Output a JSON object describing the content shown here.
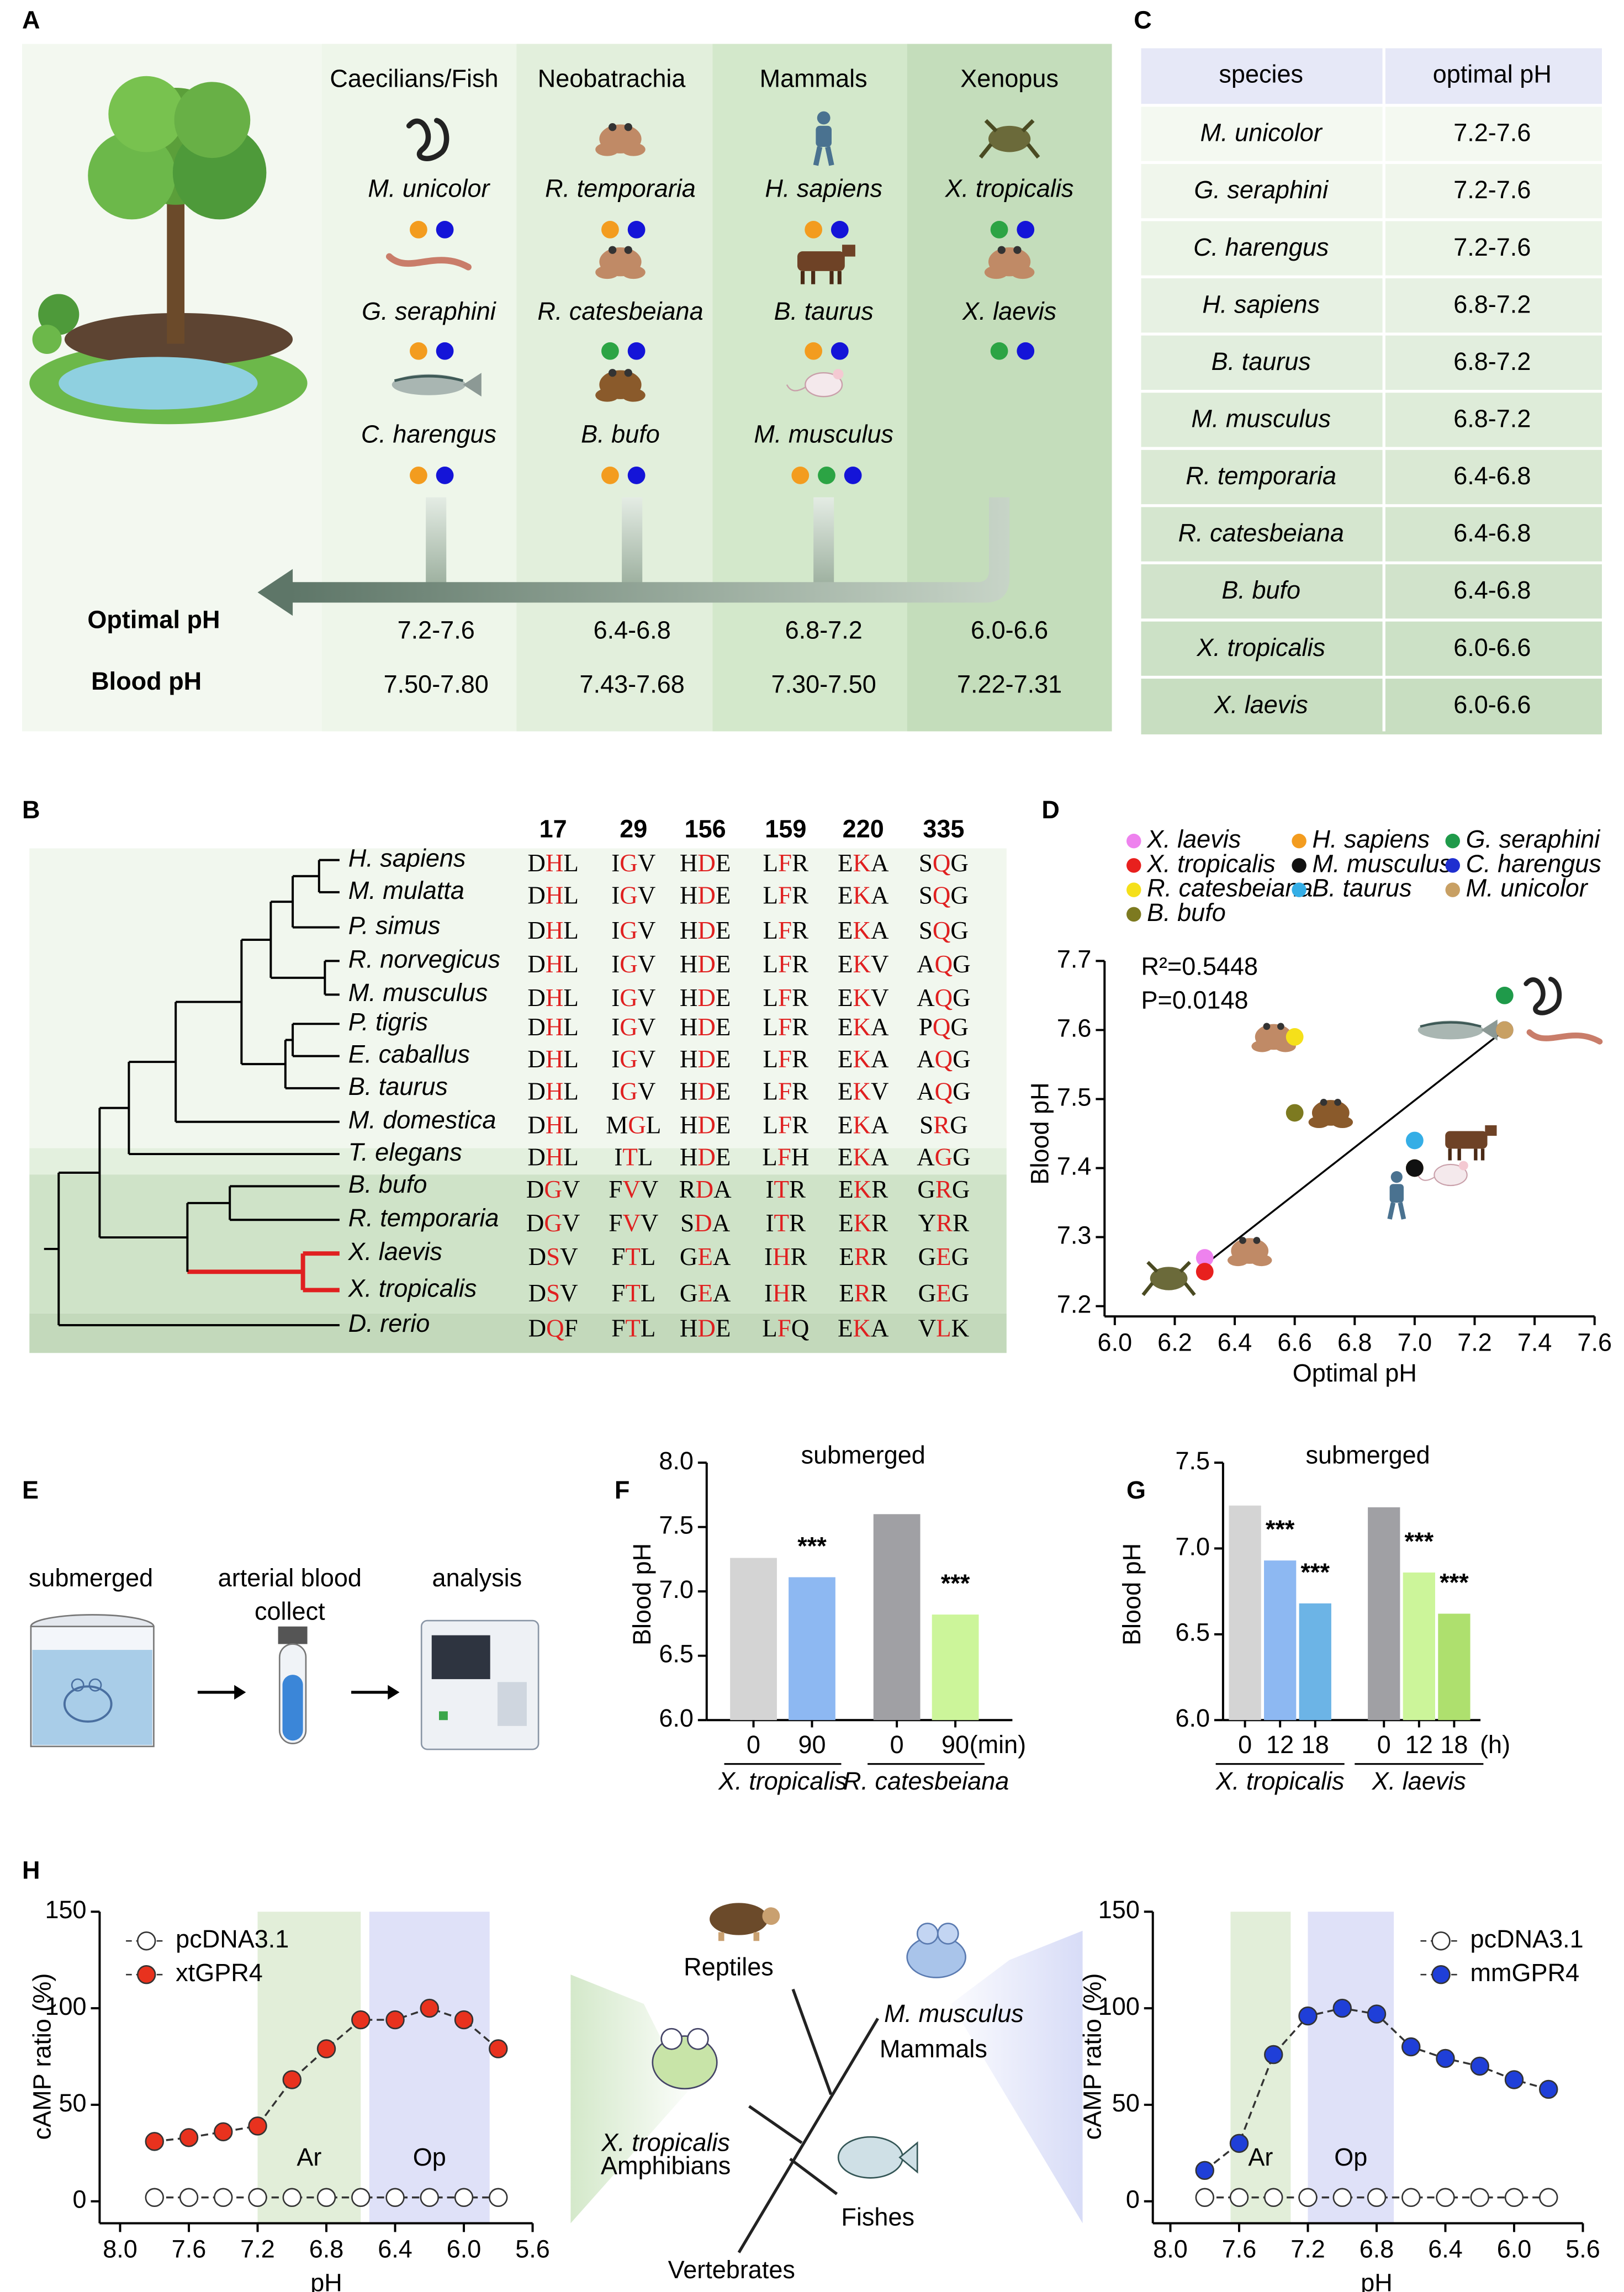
{
  "panel_labels": [
    "A",
    "B",
    "C",
    "D",
    "E",
    "F",
    "G",
    "H"
  ],
  "panel_a": {
    "columns": [
      {
        "header": "Caecilians/Fish",
        "species": [
          {
            "name": "M. unicolor",
            "dots": [
              "#f39c1f",
              "#1414d8"
            ]
          },
          {
            "name": "G. seraphini",
            "dots": [
              "#f39c1f",
              "#1414d8"
            ]
          },
          {
            "name": "C. harengus",
            "dots": [
              "#f39c1f",
              "#1414d8"
            ]
          }
        ],
        "optimal_ph": "7.2-7.6",
        "blood_ph": "7.50-7.80"
      },
      {
        "header": "Neobatrachia",
        "species": [
          {
            "name": "R. temporaria",
            "dots": [
              "#f39c1f",
              "#1414d8"
            ]
          },
          {
            "name": "R. catesbeiana",
            "dots": [
              "#2ca444",
              "#1414d8"
            ]
          },
          {
            "name": "B. bufo",
            "dots": [
              "#f39c1f",
              "#1414d8"
            ]
          }
        ],
        "optimal_ph": "6.4-6.8",
        "blood_ph": "7.43-7.68"
      },
      {
        "header": "Mammals",
        "species": [
          {
            "name": "H. sapiens",
            "dots": [
              "#f39c1f",
              "#1414d8"
            ]
          },
          {
            "name": "B. taurus",
            "dots": [
              "#f39c1f",
              "#1414d8"
            ]
          },
          {
            "name": "M. musculus",
            "dots": [
              "#f39c1f",
              "#2ca444",
              "#1414d8"
            ]
          }
        ],
        "optimal_ph": "6.8-7.2",
        "blood_ph": "7.30-7.50"
      },
      {
        "header": "Xenopus",
        "species": [
          {
            "name": "X. tropicalis",
            "dots": [
              "#2ca444",
              "#1414d8"
            ]
          },
          {
            "name": "X. laevis",
            "dots": [
              "#2ca444",
              "#1414d8"
            ]
          }
        ],
        "optimal_ph": "6.0-6.6",
        "blood_ph": "7.22-7.31"
      }
    ],
    "row_labels": [
      "Optimal pH",
      "Blood pH"
    ]
  },
  "table_c": {
    "columns": [
      "species",
      "optimal pH"
    ],
    "rows": [
      [
        "M. unicolor",
        "7.2-7.6"
      ],
      [
        "G. seraphini",
        "7.2-7.6"
      ],
      [
        "C. harengus",
        "7.2-7.6"
      ],
      [
        "H. sapiens",
        "6.8-7.2"
      ],
      [
        "B. taurus",
        "6.8-7.2"
      ],
      [
        "M. musculus",
        "6.8-7.2"
      ],
      [
        "R. temporaria",
        "6.4-6.8"
      ],
      [
        "R. catesbeiana",
        "6.4-6.8"
      ],
      [
        "B. bufo",
        "6.4-6.8"
      ],
      [
        "X. tropicalis",
        "6.0-6.6"
      ],
      [
        "X. laevis",
        "6.0-6.6"
      ]
    ]
  },
  "alignment_b": {
    "positions": [
      17,
      29,
      156,
      159,
      220,
      335
    ],
    "rows": [
      {
        "species": "H. sapiens",
        "residues": [
          "DHL",
          "IGV",
          "HDE",
          "LFR",
          "EKA",
          "SQG"
        ]
      },
      {
        "species": "M. mulatta",
        "residues": [
          "DHL",
          "IGV",
          "HDE",
          "LFR",
          "EKA",
          "SQG"
        ]
      },
      {
        "species": "P. simus",
        "residues": [
          "DHL",
          "IGV",
          "HDE",
          "LFR",
          "EKA",
          "SQG"
        ]
      },
      {
        "species": "R. norvegicus",
        "residues": [
          "DHL",
          "IGV",
          "HDE",
          "LFR",
          "EKV",
          "AQG"
        ]
      },
      {
        "species": "M. musculus",
        "residues": [
          "DHL",
          "IGV",
          "HDE",
          "LFR",
          "EKV",
          "AQG"
        ]
      },
      {
        "species": "P. tigris",
        "residues": [
          "DHL",
          "IGV",
          "HDE",
          "LFR",
          "EKA",
          "PQG"
        ]
      },
      {
        "species": "E. caballus",
        "residues": [
          "DHL",
          "IGV",
          "HDE",
          "LFR",
          "EKA",
          "AQG"
        ]
      },
      {
        "species": "B. taurus",
        "residues": [
          "DHL",
          "IGV",
          "HDE",
          "LFR",
          "EKV",
          "AQG"
        ]
      },
      {
        "species": "M. domestica",
        "residues": [
          "DHL",
          "MGL",
          "HDE",
          "LFR",
          "EKA",
          "SRG"
        ]
      },
      {
        "species": "T. elegans",
        "residues": [
          "DHL",
          "ITL",
          "HDE",
          "LFH",
          "EKA",
          "AGG"
        ]
      },
      {
        "species": "B. bufo",
        "residues": [
          "DGV",
          "FVV",
          "RDA",
          "ITR",
          "EKR",
          "GRG"
        ]
      },
      {
        "species": "R. temporaria",
        "residues": [
          "DGV",
          "FVV",
          "SDA",
          "ITR",
          "EKR",
          "YRR"
        ]
      },
      {
        "species": "X. laevis",
        "residues": [
          "DSV",
          "FTL",
          "GEA",
          "IHR",
          "ERR",
          "GEG"
        ]
      },
      {
        "species": "X. tropicalis",
        "residues": [
          "DSV",
          "FTL",
          "GEA",
          "IHR",
          "ERR",
          "GEG"
        ]
      },
      {
        "species": "D. rerio",
        "residues": [
          "DQF",
          "FTL",
          "HDE",
          "LFQ",
          "EKA",
          "VLK"
        ]
      }
    ]
  },
  "panel_e": {
    "steps": [
      {
        "lines": [
          "submerged"
        ]
      },
      {
        "lines": [
          "arterial blood",
          "collect"
        ]
      },
      {
        "lines": [
          "analysis"
        ]
      }
    ]
  },
  "diagram_h": {
    "labels": [
      {
        "text": "Reptiles",
        "color": "#000000"
      },
      {
        "text": "M. musculus",
        "color": "#1f3fd8"
      },
      {
        "text": "Mammals",
        "color": "#000000"
      },
      {
        "text": "X. tropicalis",
        "color": "#e8321e"
      },
      {
        "text": "Amphibians",
        "color": "#000000"
      },
      {
        "text": "Fishes",
        "color": "#000000"
      },
      {
        "text": "Vertebrates",
        "color": "#000000"
      }
    ]
  },
  "chart_data": [
    {
      "type": "scatter",
      "xlabel": "Optimal pH",
      "ylabel": "Blood pH",
      "annotations": [
        "R²=0.5448",
        "P=0.0148"
      ],
      "series": [
        {
          "name": "X. laevis",
          "color": "#ee82ee",
          "x": 6.3,
          "y": 7.27
        },
        {
          "name": "H. sapiens",
          "color": "#f39c1f",
          "x": 7.0,
          "y": 7.4
        },
        {
          "name": "G. seraphini",
          "color": "#1f9a4a",
          "x": 7.3,
          "y": 7.65
        },
        {
          "name": "X. tropicalis",
          "color": "#e8201e",
          "x": 6.3,
          "y": 7.25
        },
        {
          "name": "M. musculus",
          "color": "#111111",
          "x": 7.0,
          "y": 7.4
        },
        {
          "name": "C. harengus",
          "color": "#1f2fd0",
          "x": 7.3,
          "y": 7.6
        },
        {
          "name": "R. catesbeiana",
          "color": "#f5e01a",
          "x": 6.6,
          "y": 7.59
        },
        {
          "name": "B. taurus",
          "color": "#35aee6",
          "x": 7.0,
          "y": 7.44
        },
        {
          "name": "M. unicolor",
          "color": "#c8a064",
          "x": 7.3,
          "y": 7.6
        },
        {
          "name": "B. bufo",
          "color": "#7d7a20",
          "x": 6.6,
          "y": 7.48
        }
      ],
      "fit_line": {
        "x": [
          6.3,
          7.3
        ],
        "y": [
          7.26,
          7.6
        ]
      },
      "xlim": [
        6.0,
        7.6
      ],
      "xticks": [
        {
          "value": 6,
          "label": "6.0"
        },
        6.2,
        6.4,
        6.6,
        6.8,
        {
          "value": 7,
          "label": "7.0"
        },
        7.2,
        7.4,
        7.6
      ],
      "ylim": [
        7.2,
        7.7
      ],
      "yticks": [
        7.2,
        7.3,
        7.4,
        7.5,
        7.6,
        7.7
      ]
    },
    {
      "type": "bar",
      "title": "submerged",
      "ylabel": "Blood pH",
      "categories": [
        "0",
        "90",
        "0",
        "90"
      ],
      "category_unit": "(min)",
      "group_names": [
        "X. tropicalis",
        "R. catesbeiana"
      ],
      "values": [
        7.26,
        7.11,
        7.6,
        6.82
      ],
      "colors": [
        "#d4d4d4",
        "#8db8f2",
        "#a0a0a4",
        "#ccf59a"
      ],
      "significance": [
        null,
        "***",
        null,
        "***"
      ],
      "ylim": [
        6.0,
        8.0
      ],
      "yticks": [
        {
          "value": 6,
          "label": "6.0"
        },
        6.5,
        {
          "value": 7,
          "label": "7.0"
        },
        7.5,
        {
          "value": 8,
          "label": "8.0"
        }
      ]
    },
    {
      "type": "bar",
      "title": "submerged",
      "ylabel": "Blood pH",
      "categories": [
        "0",
        "12",
        "18",
        "0",
        "12",
        "18"
      ],
      "category_unit": "(h)",
      "group_names": [
        "X. tropicalis",
        "X. laevis"
      ],
      "values": [
        7.25,
        6.93,
        6.68,
        7.24,
        6.86,
        6.62
      ],
      "colors": [
        "#d4d4d4",
        "#8db8f2",
        "#6cb4e6",
        "#a0a0a4",
        "#ccf59a",
        "#aee06e"
      ],
      "significance": [
        null,
        "***",
        "***",
        null,
        "***",
        "***"
      ],
      "ylim": [
        6.0,
        7.5
      ],
      "yticks": [
        {
          "value": 6,
          "label": "6.0"
        },
        6.5,
        {
          "value": 7,
          "label": "7.0"
        },
        7.5
      ]
    },
    {
      "type": "line",
      "xlabel": "pH",
      "ylabel": "cAMP ratio (%)",
      "x": [
        7.8,
        7.6,
        7.4,
        7.2,
        7.0,
        6.8,
        6.6,
        6.4,
        6.2,
        6.0,
        5.8
      ],
      "series": [
        {
          "name": "pcDNA3.1",
          "color": "#ffffff",
          "values": [
            2,
            2,
            2,
            2,
            2,
            2,
            2,
            2,
            2,
            2,
            2
          ]
        },
        {
          "name": "xtGPR4",
          "color": "#e8321e",
          "values": [
            31,
            33,
            36,
            39,
            63,
            79,
            94,
            94,
            100,
            94,
            79
          ]
        }
      ],
      "bands": [
        {
          "label": "Ar",
          "range": [
            7.2,
            6.6
          ],
          "color": "#e2eed9"
        },
        {
          "label": "Op",
          "range": [
            6.55,
            5.85
          ],
          "color": "#dfe1f8"
        }
      ],
      "xlim": [
        8.0,
        5.6
      ],
      "xticks": [
        {
          "value": 8,
          "label": "8.0"
        },
        7.6,
        7.2,
        6.8,
        6.4,
        {
          "value": 6,
          "label": "6.0"
        },
        5.6
      ],
      "ylim": [
        0,
        150
      ],
      "yticks": [
        0,
        50,
        100,
        150
      ]
    },
    {
      "type": "line",
      "xlabel": "pH",
      "ylabel": "cAMP ratio (%)",
      "x": [
        7.8,
        7.6,
        7.4,
        7.2,
        7.0,
        6.8,
        6.6,
        6.4,
        6.2,
        6.0,
        5.8
      ],
      "series": [
        {
          "name": "pcDNA3.1",
          "color": "#ffffff",
          "values": [
            2,
            2,
            2,
            2,
            2,
            2,
            2,
            2,
            2,
            2,
            2
          ]
        },
        {
          "name": "mmGPR4",
          "color": "#1f3fd8",
          "values": [
            16,
            30,
            76,
            96,
            100,
            97,
            80,
            74,
            70,
            63,
            58
          ]
        }
      ],
      "bands": [
        {
          "label": "Ar",
          "range": [
            7.65,
            7.3
          ],
          "color": "#e2eed9"
        },
        {
          "label": "Op",
          "range": [
            7.2,
            6.7
          ],
          "color": "#dfe1f8"
        }
      ],
      "xlim": [
        8.0,
        5.6
      ],
      "xticks": [
        {
          "value": 8,
          "label": "8.0"
        },
        7.6,
        7.2,
        6.8,
        6.4,
        {
          "value": 6,
          "label": "6.0"
        },
        5.6
      ],
      "ylim": [
        0,
        150
      ],
      "yticks": [
        0,
        50,
        100,
        150
      ]
    }
  ]
}
